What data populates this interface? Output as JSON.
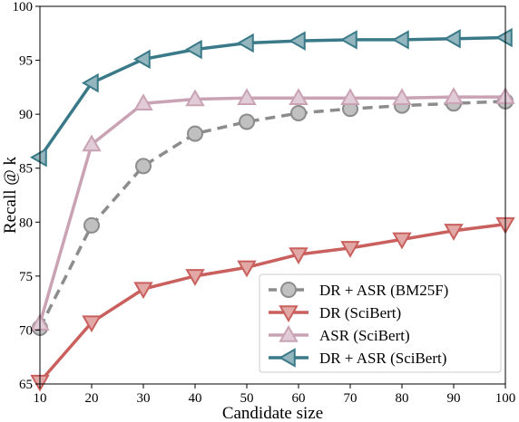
{
  "chart_data": {
    "type": "line",
    "xlabel": "Candidate size",
    "ylabel": "Recall @ k",
    "xlim": [
      10,
      100
    ],
    "ylim": [
      65,
      100
    ],
    "xticks": [
      "10",
      "20",
      "30",
      "40",
      "50",
      "60",
      "70",
      "80",
      "90",
      "100"
    ],
    "yticks": [
      "65",
      "70",
      "75",
      "80",
      "85",
      "90",
      "95",
      "100"
    ],
    "legend_position": "lower-right",
    "grid": false,
    "x": [
      10,
      20,
      30,
      40,
      50,
      60,
      70,
      80,
      90,
      100
    ],
    "series": [
      {
        "name": "DR + ASR (BM25F)",
        "color": "#8c8c8c",
        "marker": "circle",
        "linestyle": "dashed",
        "values": [
          70.2,
          79.7,
          85.2,
          88.2,
          89.3,
          90.1,
          90.5,
          90.8,
          91.0,
          91.2
        ]
      },
      {
        "name": "DR (SciBert)",
        "color": "#c9605e",
        "marker": "triangle-down",
        "linestyle": "solid",
        "values": [
          65.2,
          70.7,
          73.8,
          75.0,
          75.8,
          77.0,
          77.6,
          78.4,
          79.2,
          79.8
        ]
      },
      {
        "name": "ASR (SciBert)",
        "color": "#c9a3b4",
        "marker": "triangle-up",
        "linestyle": "solid",
        "values": [
          70.6,
          87.2,
          91.0,
          91.4,
          91.5,
          91.5,
          91.5,
          91.5,
          91.6,
          91.6
        ]
      },
      {
        "name": "DR + ASR (SciBert)",
        "color": "#3a7a88",
        "marker": "triangle-left",
        "linestyle": "solid",
        "values": [
          86.0,
          92.9,
          95.1,
          96.0,
          96.6,
          96.8,
          96.9,
          96.9,
          97.0,
          97.1
        ]
      }
    ]
  }
}
